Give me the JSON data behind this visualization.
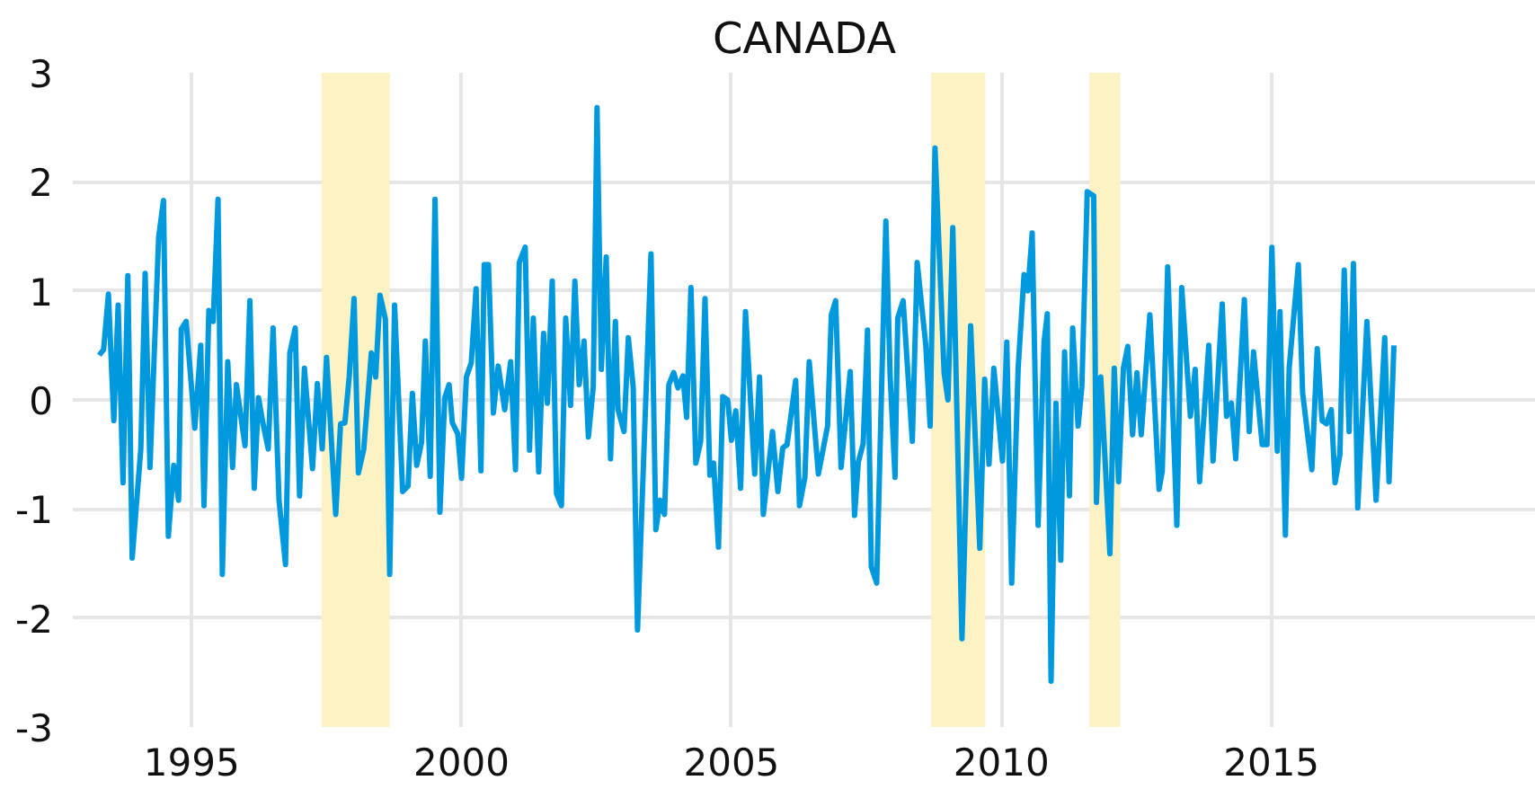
{
  "chart_data": {
    "type": "line",
    "title": "CANADA",
    "xlim": [
      1992.8,
      2019.9
    ],
    "ylim": [
      -3,
      3
    ],
    "xticks": [
      1995,
      2000,
      2005,
      2010,
      2015
    ],
    "yticks": [
      -3,
      -2,
      -1,
      0,
      1,
      2,
      3
    ],
    "grid": true,
    "marker": "none",
    "line_style": "solid",
    "bands": [
      {
        "axis": "x",
        "from": 1997.41,
        "to": 1998.67,
        "color": "#fcf2c4"
      },
      {
        "axis": "x",
        "from": 2008.7,
        "to": 2009.7,
        "color": "#fcf2c4"
      },
      {
        "axis": "x",
        "from": 2011.63,
        "to": 2012.2,
        "color": "#fcf2c4"
      }
    ],
    "series": [
      {
        "color": "#0099dd",
        "x": [
          1993.29,
          1993.37,
          1993.46,
          1993.56,
          1993.64,
          1993.73,
          1993.82,
          1993.9,
          1994.06,
          1994.14,
          1994.23,
          1994.39,
          1994.48,
          1994.57,
          1994.67,
          1994.76,
          1994.81,
          1994.9,
          1995.06,
          1995.17,
          1995.23,
          1995.32,
          1995.4,
          1995.49,
          1995.57,
          1995.67,
          1995.76,
          1995.83,
          1995.99,
          1996.08,
          1996.16,
          1996.24,
          1996.32,
          1996.42,
          1996.51,
          1996.62,
          1996.74,
          1996.82,
          1996.92,
          1997.0,
          1997.09,
          1997.24,
          1997.33,
          1997.42,
          1997.5,
          1997.67,
          1997.76,
          1997.84,
          1997.92,
          1998.01,
          1998.09,
          1998.19,
          1998.33,
          1998.41,
          1998.49,
          1998.59,
          1998.67,
          1998.76,
          1998.91,
          1999.01,
          1999.09,
          1999.17,
          1999.26,
          1999.33,
          1999.42,
          1999.51,
          1999.6,
          1999.69,
          1999.77,
          1999.83,
          1999.93,
          2000.0,
          2000.09,
          2000.18,
          2000.27,
          2000.36,
          2000.42,
          2000.5,
          2000.59,
          2000.68,
          2000.8,
          2000.91,
          2001.0,
          2001.07,
          2001.18,
          2001.26,
          2001.33,
          2001.43,
          2001.52,
          2001.59,
          2001.68,
          2001.76,
          2001.85,
          2001.93,
          2002.02,
          2002.1,
          2002.18,
          2002.27,
          2002.35,
          2002.44,
          2002.51,
          2002.59,
          2002.68,
          2002.76,
          2002.85,
          2002.9,
          2003.01,
          2003.09,
          2003.18,
          2003.26,
          2003.51,
          2003.6,
          2003.68,
          2003.76,
          2003.84,
          2003.93,
          2004.01,
          2004.1,
          2004.17,
          2004.25,
          2004.34,
          2004.43,
          2004.51,
          2004.6,
          2004.67,
          2004.76,
          2004.84,
          2004.93,
          2005.0,
          2005.08,
          2005.17,
          2005.26,
          2005.43,
          2005.52,
          2005.59,
          2005.76,
          2005.86,
          2005.95,
          2006.03,
          2006.19,
          2006.26,
          2006.36,
          2006.44,
          2006.61,
          2006.78,
          2006.85,
          2006.93,
          2007.03,
          2007.2,
          2007.28,
          2007.35,
          2007.44,
          2007.52,
          2007.59,
          2007.69,
          2007.86,
          2007.94,
          2008.03,
          2008.08,
          2008.18,
          2008.35,
          2008.44,
          2008.6,
          2008.68,
          2008.77,
          2008.94,
          2009.01,
          2009.1,
          2009.27,
          2009.43,
          2009.6,
          2009.69,
          2009.77,
          2009.86,
          2010.02,
          2010.1,
          2010.19,
          2010.31,
          2010.42,
          2010.49,
          2010.57,
          2010.68,
          2010.79,
          2010.85,
          2010.92,
          2011.01,
          2011.1,
          2011.17,
          2011.26,
          2011.32,
          2011.42,
          2011.49,
          2011.59,
          2011.71,
          2011.76,
          2011.84,
          2012.01,
          2012.09,
          2012.17,
          2012.26,
          2012.34,
          2012.43,
          2012.51,
          2012.59,
          2012.75,
          2012.92,
          2012.98,
          2013.08,
          2013.25,
          2013.34,
          2013.5,
          2013.59,
          2013.67,
          2013.84,
          2013.92,
          2014.09,
          2014.17,
          2014.26,
          2014.34,
          2014.5,
          2014.59,
          2014.67,
          2014.83,
          2014.92,
          2015.01,
          2015.11,
          2015.16,
          2015.26,
          2015.33,
          2015.5,
          2015.58,
          2015.75,
          2015.85,
          2015.94,
          2016.02,
          2016.11,
          2016.18,
          2016.27,
          2016.35,
          2016.44,
          2016.52,
          2016.6,
          2016.77,
          2016.94,
          2017.1,
          2017.18,
          2017.27
        ],
        "values": [
          0.41,
          0.46,
          0.97,
          -0.19,
          0.87,
          -0.76,
          1.14,
          -1.45,
          -0.45,
          1.16,
          -0.62,
          1.49,
          1.83,
          -1.25,
          -0.6,
          -0.92,
          0.65,
          0.72,
          -0.26,
          0.5,
          -0.97,
          0.82,
          0.72,
          1.84,
          -1.6,
          0.35,
          -0.62,
          0.14,
          -0.42,
          0.91,
          -0.81,
          0.02,
          -0.21,
          -0.45,
          0.66,
          -0.92,
          -1.51,
          0.43,
          0.66,
          -0.88,
          0.29,
          -0.63,
          0.15,
          -0.45,
          0.39,
          -1.05,
          -0.22,
          -0.21,
          0.21,
          0.93,
          -0.67,
          -0.45,
          0.43,
          0.21,
          0.96,
          0.74,
          -1.6,
          0.87,
          -0.84,
          -0.79,
          0.06,
          -0.6,
          -0.39,
          0.54,
          -0.7,
          1.84,
          -1.03,
          0.02,
          0.14,
          -0.21,
          -0.31,
          -0.72,
          0.21,
          0.34,
          1.02,
          -0.65,
          1.24,
          1.24,
          -0.12,
          0.31,
          -0.09,
          0.35,
          -0.64,
          1.26,
          1.4,
          -0.46,
          0.75,
          -0.66,
          0.61,
          -0.03,
          1.09,
          -0.86,
          -0.97,
          0.75,
          -0.05,
          1.09,
          0.14,
          0.54,
          -0.34,
          0.12,
          2.68,
          0.28,
          1.31,
          -0.54,
          0.72,
          -0.09,
          -0.29,
          0.57,
          0.12,
          -2.11,
          1.34,
          -1.19,
          -0.92,
          -1.05,
          0.14,
          0.25,
          0.11,
          0.22,
          -0.16,
          1.03,
          -0.58,
          -0.38,
          0.93,
          -0.69,
          -0.58,
          -1.35,
          0.03,
          0,
          -0.37,
          -0.1,
          -0.81,
          0.81,
          -0.68,
          0.21,
          -1.05,
          -0.29,
          -0.84,
          -0.44,
          -0.41,
          0.18,
          -0.97,
          -0.71,
          0.35,
          -0.68,
          -0.24,
          0.78,
          0.91,
          -0.62,
          0.26,
          -1.06,
          -0.57,
          -0.4,
          0.64,
          -1.53,
          -1.68,
          1.64,
          0.21,
          -0.71,
          0.75,
          0.91,
          -0.38,
          1.26,
          0.5,
          -0.24,
          2.31,
          0.24,
          0,
          1.58,
          -2.19,
          0.68,
          -1.36,
          0.19,
          -0.59,
          0.29,
          -0.56,
          0.53,
          -1.68,
          0.29,
          1.15,
          1.0,
          1.53,
          -1.15,
          0.53,
          0.79,
          -2.58,
          -0.03,
          -1.47,
          0.44,
          -0.88,
          0.66,
          -0.24,
          0.12,
          1.91,
          1.87,
          -0.94,
          0.21,
          -1.41,
          0.29,
          -0.75,
          0.29,
          0.49,
          -0.32,
          0.25,
          -0.32,
          0.78,
          -0.82,
          -0.65,
          1.22,
          -1.15,
          1.03,
          -0.15,
          0.28,
          -0.75,
          0.5,
          -0.56,
          0.88,
          -0.15,
          -0.03,
          -0.54,
          0.92,
          -0.29,
          0.44,
          -0.41,
          -0.41,
          1.4,
          -0.47,
          0.81,
          -1.24,
          0.29,
          1.24,
          0.06,
          -0.64,
          0.47,
          -0.19,
          -0.22,
          -0.09,
          -0.76,
          -0.5,
          1.19,
          -0.29,
          1.25,
          -0.99,
          0.72,
          -0.92,
          0.57,
          -0.75,
          0.5
        ]
      }
    ]
  }
}
